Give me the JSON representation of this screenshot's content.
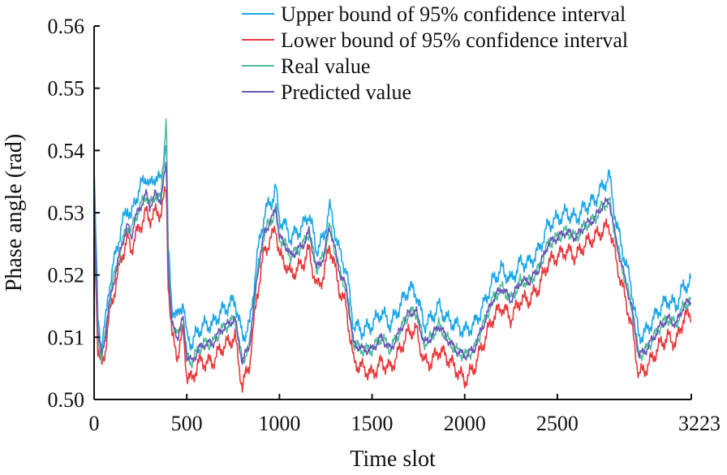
{
  "chart_data": {
    "type": "line",
    "title": "",
    "xlabel": "Time slot",
    "ylabel": "Phase angle (rad)",
    "xlim": [
      0,
      3223
    ],
    "ylim": [
      0.5,
      0.56
    ],
    "x_ticks": [
      0,
      500,
      1000,
      1500,
      2000,
      2500,
      3223
    ],
    "x_tick_labels": [
      "0",
      "500",
      "1000",
      "1500",
      "2000",
      "2500",
      "3223"
    ],
    "y_ticks": [
      0.5,
      0.51,
      0.52,
      0.53,
      0.54,
      0.55,
      0.56
    ],
    "y_tick_labels": [
      "0.50",
      "0.51",
      "0.52",
      "0.53",
      "0.54",
      "0.55",
      "0.56"
    ],
    "grid": false,
    "legend_position": "top-right",
    "legend": [
      "Upper bound of 95% confidence interval",
      "Lower bound of 95% confidence interval",
      "Real value",
      "Predicted value"
    ],
    "colors": {
      "upper": "#1aa7e8",
      "lower": "#e8393b",
      "real": "#4fbf98",
      "predicted": "#6a55b8"
    },
    "x": [
      0,
      20,
      40,
      60,
      80,
      100,
      120,
      150,
      180,
      200,
      220,
      250,
      280,
      300,
      330,
      360,
      390,
      400,
      420,
      450,
      480,
      500,
      530,
      560,
      600,
      640,
      680,
      720,
      760,
      800,
      840,
      880,
      920,
      960,
      980,
      1000,
      1030,
      1060,
      1100,
      1130,
      1160,
      1200,
      1240,
      1270,
      1300,
      1330,
      1360,
      1400,
      1450,
      1500,
      1550,
      1600,
      1650,
      1700,
      1740,
      1780,
      1820,
      1860,
      1900,
      1950,
      2000,
      2050,
      2100,
      2150,
      2200,
      2250,
      2300,
      2350,
      2400,
      2450,
      2500,
      2550,
      2600,
      2650,
      2700,
      2740,
      2780,
      2820,
      2860,
      2900,
      2940,
      2980,
      3020,
      3060,
      3100,
      3140,
      3180,
      3223
    ],
    "series": [
      {
        "name": "Upper bound of 95% confidence interval",
        "values": [
          0.537,
          0.513,
          0.509,
          0.512,
          0.518,
          0.521,
          0.524,
          0.528,
          0.531,
          0.529,
          0.532,
          0.534,
          0.536,
          0.534,
          0.536,
          0.535,
          0.542,
          0.524,
          0.515,
          0.513,
          0.516,
          0.51,
          0.509,
          0.511,
          0.512,
          0.512,
          0.514,
          0.515,
          0.516,
          0.51,
          0.512,
          0.523,
          0.53,
          0.532,
          0.534,
          0.529,
          0.528,
          0.526,
          0.527,
          0.528,
          0.53,
          0.524,
          0.526,
          0.531,
          0.527,
          0.523,
          0.521,
          0.512,
          0.511,
          0.512,
          0.514,
          0.512,
          0.515,
          0.518,
          0.517,
          0.512,
          0.513,
          0.515,
          0.513,
          0.512,
          0.511,
          0.512,
          0.515,
          0.519,
          0.521,
          0.519,
          0.522,
          0.522,
          0.524,
          0.528,
          0.529,
          0.53,
          0.529,
          0.531,
          0.532,
          0.534,
          0.536,
          0.528,
          0.523,
          0.518,
          0.51,
          0.511,
          0.513,
          0.515,
          0.516,
          0.515,
          0.518,
          0.519
        ],
        "color": "#1aa7e8"
      },
      {
        "name": "Lower bound of 95% confidence interval",
        "values": [
          0.53,
          0.508,
          0.505,
          0.508,
          0.513,
          0.516,
          0.519,
          0.523,
          0.526,
          0.524,
          0.526,
          0.528,
          0.53,
          0.529,
          0.53,
          0.53,
          0.534,
          0.519,
          0.51,
          0.507,
          0.511,
          0.504,
          0.503,
          0.506,
          0.506,
          0.506,
          0.508,
          0.509,
          0.51,
          0.502,
          0.506,
          0.517,
          0.524,
          0.526,
          0.528,
          0.523,
          0.522,
          0.52,
          0.521,
          0.522,
          0.524,
          0.518,
          0.52,
          0.525,
          0.521,
          0.517,
          0.515,
          0.506,
          0.505,
          0.504,
          0.506,
          0.505,
          0.508,
          0.511,
          0.511,
          0.506,
          0.506,
          0.508,
          0.507,
          0.505,
          0.503,
          0.505,
          0.509,
          0.513,
          0.515,
          0.513,
          0.516,
          0.516,
          0.518,
          0.522,
          0.523,
          0.524,
          0.523,
          0.525,
          0.526,
          0.527,
          0.528,
          0.522,
          0.517,
          0.512,
          0.504,
          0.505,
          0.507,
          0.509,
          0.51,
          0.509,
          0.513,
          0.514
        ],
        "color": "#e8393b"
      },
      {
        "name": "Real value",
        "values": [
          0.533,
          0.51,
          0.507,
          0.51,
          0.515,
          0.519,
          0.521,
          0.525,
          0.528,
          0.527,
          0.529,
          0.531,
          0.533,
          0.531,
          0.533,
          0.532,
          0.546,
          0.521,
          0.513,
          0.51,
          0.513,
          0.507,
          0.506,
          0.508,
          0.509,
          0.509,
          0.511,
          0.512,
          0.513,
          0.506,
          0.509,
          0.52,
          0.527,
          0.529,
          0.531,
          0.526,
          0.525,
          0.523,
          0.524,
          0.525,
          0.527,
          0.521,
          0.523,
          0.528,
          0.524,
          0.52,
          0.518,
          0.509,
          0.508,
          0.508,
          0.51,
          0.508,
          0.511,
          0.514,
          0.514,
          0.509,
          0.51,
          0.512,
          0.51,
          0.508,
          0.507,
          0.508,
          0.512,
          0.516,
          0.518,
          0.516,
          0.519,
          0.519,
          0.521,
          0.525,
          0.526,
          0.527,
          0.526,
          0.528,
          0.529,
          0.531,
          0.532,
          0.525,
          0.52,
          0.515,
          0.507,
          0.508,
          0.51,
          0.512,
          0.513,
          0.512,
          0.515,
          0.516
        ],
        "color": "#4fbf98"
      },
      {
        "name": "Predicted value",
        "values": [
          0.534,
          0.511,
          0.507,
          0.51,
          0.515,
          0.518,
          0.521,
          0.525,
          0.528,
          0.526,
          0.529,
          0.531,
          0.533,
          0.531,
          0.533,
          0.532,
          0.538,
          0.521,
          0.512,
          0.51,
          0.513,
          0.507,
          0.506,
          0.508,
          0.509,
          0.509,
          0.511,
          0.512,
          0.513,
          0.506,
          0.509,
          0.52,
          0.527,
          0.529,
          0.531,
          0.526,
          0.525,
          0.523,
          0.524,
          0.525,
          0.527,
          0.521,
          0.523,
          0.528,
          0.524,
          0.52,
          0.518,
          0.509,
          0.508,
          0.508,
          0.51,
          0.508,
          0.511,
          0.514,
          0.514,
          0.509,
          0.51,
          0.512,
          0.51,
          0.508,
          0.507,
          0.508,
          0.512,
          0.516,
          0.518,
          0.516,
          0.519,
          0.519,
          0.521,
          0.525,
          0.526,
          0.527,
          0.526,
          0.528,
          0.529,
          0.531,
          0.532,
          0.525,
          0.52,
          0.515,
          0.507,
          0.508,
          0.51,
          0.512,
          0.513,
          0.512,
          0.515,
          0.516
        ],
        "color": "#6a55b8"
      }
    ]
  }
}
